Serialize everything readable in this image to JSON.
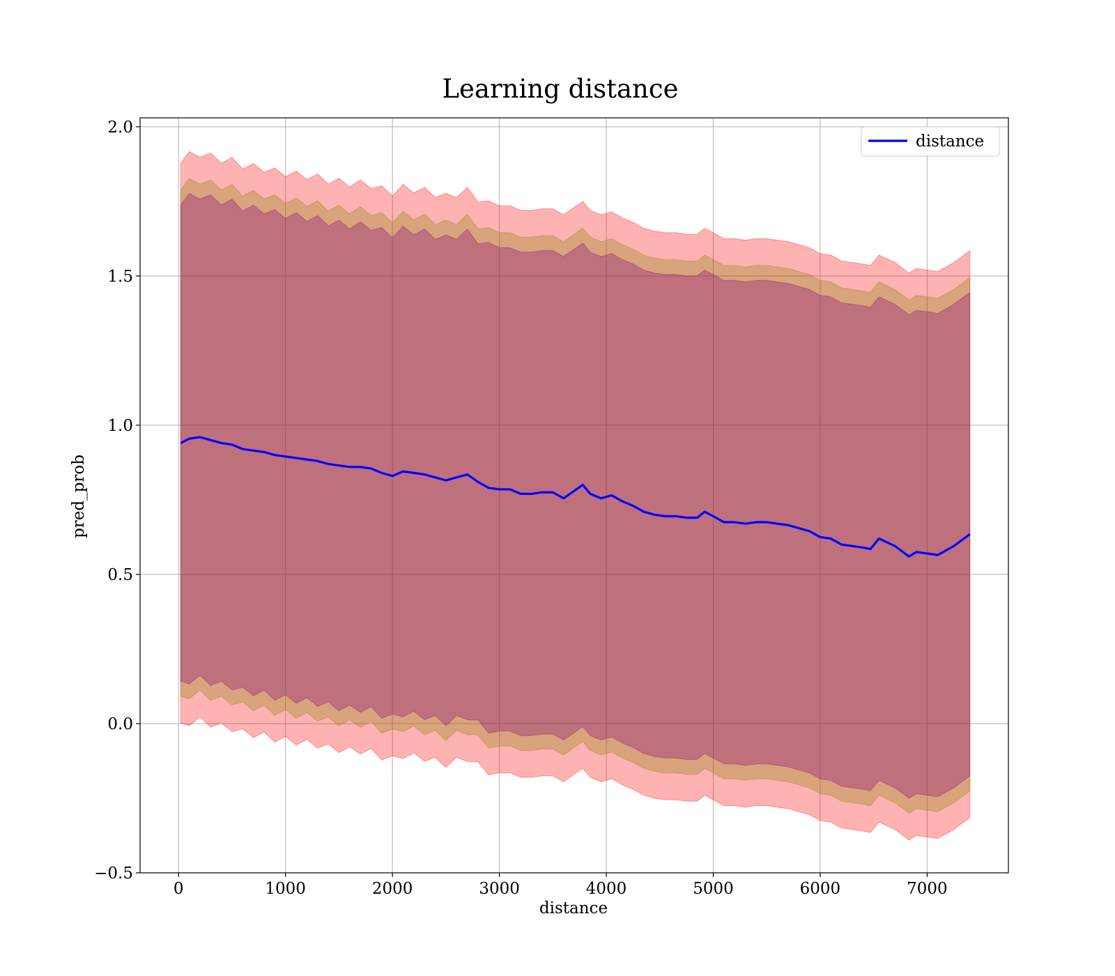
{
  "chart_data": {
    "type": "area",
    "title": "Learning distance",
    "xlabel": "distance",
    "ylabel": "pred_prob",
    "xlim": [
      -360,
      7760
    ],
    "ylim": [
      -0.5,
      2.03
    ],
    "xticks": [
      0,
      1000,
      2000,
      3000,
      4000,
      5000,
      6000,
      7000
    ],
    "xtick_labels": [
      "0",
      "1000",
      "2000",
      "3000",
      "4000",
      "5000",
      "6000",
      "7000"
    ],
    "yticks": [
      -0.5,
      0.0,
      0.5,
      1.0,
      1.5,
      2.0
    ],
    "ytick_labels": [
      "−0.5",
      "0.0",
      "0.5",
      "1.0",
      "1.5",
      "2.0"
    ],
    "grid": true,
    "legend": {
      "placement": "upper right",
      "entries": [
        "distance"
      ]
    },
    "line_color": "#0000ff",
    "band_colors": {
      "outer": "#ff0000",
      "middle": "#808000",
      "inner": "#800080"
    },
    "band_half_widths": {
      "outer": 0.95,
      "middle": 0.86,
      "inner": 0.81
    },
    "series": [
      {
        "name": "distance",
        "x": [
          20,
          100,
          200,
          300,
          400,
          500,
          600,
          700,
          800,
          900,
          1000,
          1100,
          1200,
          1300,
          1400,
          1500,
          1600,
          1700,
          1800,
          1900,
          2000,
          2100,
          2200,
          2300,
          2400,
          2500,
          2600,
          2700,
          2800,
          2900,
          3000,
          3100,
          3200,
          3300,
          3400,
          3500,
          3600,
          3700,
          3780,
          3850,
          3950,
          4050,
          4150,
          4250,
          4350,
          4450,
          4550,
          4650,
          4750,
          4850,
          4920,
          5000,
          5100,
          5200,
          5300,
          5400,
          5500,
          5600,
          5700,
          5800,
          5900,
          6000,
          6100,
          6200,
          6300,
          6400,
          6470,
          6550,
          6700,
          6830,
          6900,
          7000,
          7100,
          7250,
          7400
        ],
        "y": [
          0.94,
          0.955,
          0.96,
          0.95,
          0.94,
          0.935,
          0.92,
          0.915,
          0.91,
          0.9,
          0.895,
          0.89,
          0.885,
          0.88,
          0.87,
          0.865,
          0.86,
          0.86,
          0.855,
          0.84,
          0.83,
          0.845,
          0.84,
          0.835,
          0.825,
          0.815,
          0.825,
          0.835,
          0.81,
          0.79,
          0.785,
          0.785,
          0.77,
          0.77,
          0.775,
          0.775,
          0.755,
          0.78,
          0.8,
          0.77,
          0.755,
          0.765,
          0.745,
          0.73,
          0.71,
          0.7,
          0.695,
          0.695,
          0.69,
          0.69,
          0.71,
          0.695,
          0.675,
          0.675,
          0.67,
          0.675,
          0.675,
          0.67,
          0.665,
          0.655,
          0.645,
          0.625,
          0.62,
          0.6,
          0.595,
          0.59,
          0.585,
          0.62,
          0.595,
          0.56,
          0.575,
          0.57,
          0.565,
          0.595,
          0.635
        ]
      }
    ]
  }
}
